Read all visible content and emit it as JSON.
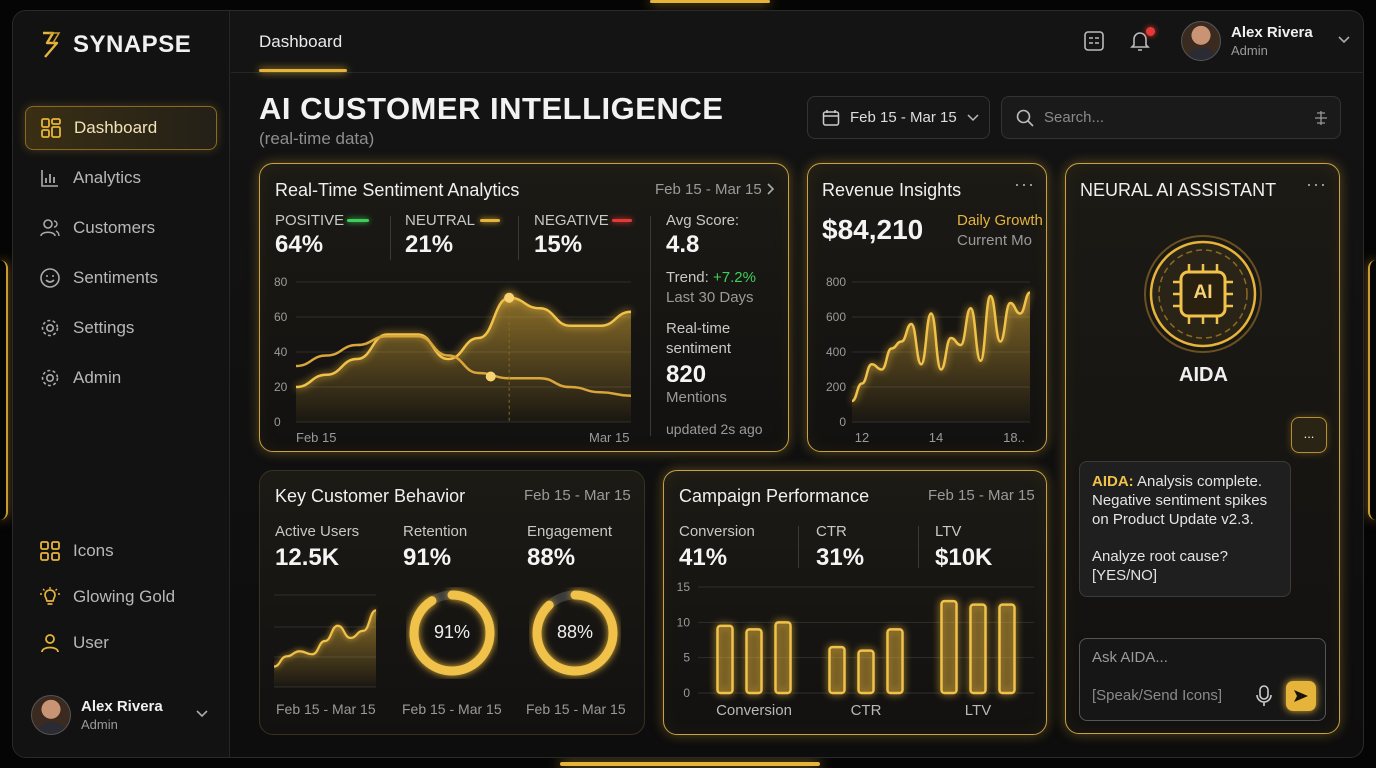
{
  "brand": {
    "name": "SYNAPSE"
  },
  "sidebar": {
    "items": [
      {
        "label": "Dashboard",
        "icon": "dashboard-icon"
      },
      {
        "label": "Analytics",
        "icon": "bar-chart-icon"
      },
      {
        "label": "Customers",
        "icon": "users-icon"
      },
      {
        "label": "Sentiments",
        "icon": "smile-icon"
      },
      {
        "label": "Settings",
        "icon": "gear-icon"
      },
      {
        "label": "Admin",
        "icon": "admin-gear-icon"
      }
    ],
    "extras": [
      {
        "label": "Icons",
        "icon": "grid-icon"
      },
      {
        "label": "Glowing Gold",
        "icon": "bulb-icon"
      },
      {
        "label": "User",
        "icon": "user-icon"
      }
    ],
    "user": {
      "name": "Alex Rivera",
      "role": "Admin"
    }
  },
  "header": {
    "tab": "Dashboard",
    "user": {
      "name": "Alex Rivera",
      "role": "Admin"
    }
  },
  "page": {
    "title": "AI CUSTOMER INTELLIGENCE",
    "subtitle": "(real-time data)",
    "date_range": "Feb 15 - Mar 15",
    "search_placeholder": "Search..."
  },
  "sentiment": {
    "title": "Real-Time Sentiment Analytics",
    "date": "Feb 15 - Mar 15",
    "positive_label": "POSITIVE",
    "positive_value": "64%",
    "neutral_label": "NEUTRAL",
    "neutral_value": "21%",
    "negative_label": "NEGATIVE",
    "negative_value": "15%",
    "avg_label": "Avg Score:",
    "avg_value": "4.8",
    "trend_label": "Trend:",
    "trend_value": "+7.2%",
    "trend_period": "Last 30 Days",
    "realtime_label1": "Real-time",
    "realtime_label2": "sentiment",
    "mentions_value": "820",
    "mentions_label": "Mentions",
    "updated": "updated 2s ago",
    "colors": {
      "positive": "#3ecf5a",
      "neutral": "#e6b43a",
      "negative": "#e53935"
    }
  },
  "revenue": {
    "title": "Revenue Insights",
    "value": "$84,210",
    "daily_label": "Daily Growth",
    "current_label": "Current Mo"
  },
  "assistant": {
    "title": "NEURAL AI ASSISTANT",
    "chip_label": "AI",
    "name": "AIDA",
    "typing": "...",
    "message_sender": "AIDA:",
    "message_body": "Analysis complete. Negative sentiment spikes on Product Update v2.3.",
    "message_question": "Analyze root cause?",
    "message_options": "[YES/NO]",
    "input_placeholder": "Ask AIDA...",
    "input_hint": "[Speak/Send Icons]"
  },
  "behavior": {
    "title": "Key Customer Behavior",
    "date": "Feb 15 - Mar 15",
    "active_label": "Active Users",
    "active_value": "12.5K",
    "retention_label": "Retention",
    "retention_value": "91%",
    "engagement_label": "Engagement",
    "engagement_value": "88%",
    "footer_1": "Feb 15 - Mar 15",
    "footer_2": "Feb 15 - Mar 15",
    "footer_3": "Feb 15 - Mar 15",
    "retention_fraction": 0.91,
    "engagement_fraction": 0.88
  },
  "campaign": {
    "title": "Campaign Performance",
    "date": "Feb 15 - Mar 15",
    "conversion_label": "Conversion",
    "conversion_value": "41%",
    "ctr_label": "CTR",
    "ctr_value": "31%",
    "ltv_label": "LTV",
    "ltv_value": "$10K"
  },
  "chart_data": [
    {
      "type": "area",
      "x_labels": [
        "Feb 15",
        "Mar 15"
      ],
      "ylim": [
        0,
        80
      ],
      "yticks": [
        0,
        20,
        40,
        60,
        80
      ],
      "series": [
        {
          "values": [
            20,
            27,
            36,
            50,
            50,
            36,
            48,
            71,
            65,
            55,
            55,
            63
          ]
        },
        {
          "values": [
            32,
            38,
            44,
            49,
            49,
            38,
            28,
            25,
            25,
            20,
            17,
            15
          ]
        }
      ]
    },
    {
      "type": "area",
      "xticks": [
        "12",
        "14",
        "18.."
      ],
      "ylim": [
        0,
        800
      ],
      "yticks": [
        0,
        200,
        400,
        600,
        800
      ],
      "values": [
        120,
        220,
        330,
        300,
        420,
        460,
        560,
        330,
        620,
        300,
        480,
        440,
        650,
        350,
        720,
        460,
        680,
        620,
        740
      ]
    },
    {
      "type": "area",
      "values": [
        20,
        30,
        35,
        32,
        45,
        60,
        48,
        55,
        75
      ]
    },
    {
      "type": "bar",
      "categories": [
        "Conversion",
        "CTR",
        "LTV"
      ],
      "ylim": [
        0,
        15
      ],
      "yticks": [
        0,
        5,
        10,
        15
      ],
      "series": [
        {
          "values": [
            9.5,
            6.5,
            13
          ]
        },
        {
          "values": [
            9,
            6,
            12.5
          ]
        },
        {
          "values": [
            10,
            9,
            12.5
          ]
        }
      ]
    }
  ]
}
